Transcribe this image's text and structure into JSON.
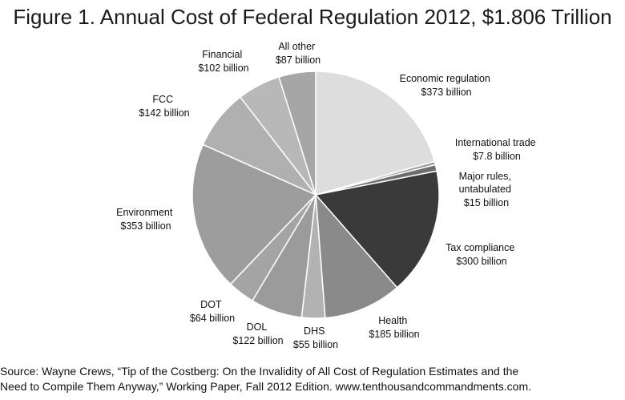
{
  "chart_data": {
    "type": "pie",
    "title": "Figure 1. Annual Cost of Federal Regulation 2012, $1.806 Trillion",
    "slices": [
      {
        "label": "Economic regulation",
        "value_text": "$373 billion",
        "value": 373,
        "color": "#dddddd"
      },
      {
        "label": "International trade",
        "value_text": "$7.8 billion",
        "value": 7.8,
        "color": "#9a9a9a"
      },
      {
        "label": "Major rules, untabulated",
        "value_text": "$15 billion",
        "value": 15,
        "color": "#6e6e6e"
      },
      {
        "label": "Tax compliance",
        "value_text": "$300 billion",
        "value": 300,
        "color": "#3a3a3a"
      },
      {
        "label": "Health",
        "value_text": "$185 billion",
        "value": 185,
        "color": "#8a8a8a"
      },
      {
        "label": "DHS",
        "value_text": "$55 billion",
        "value": 55,
        "color": "#b2b2b2"
      },
      {
        "label": "DOL",
        "value_text": "$122 billion",
        "value": 122,
        "color": "#9b9b9b"
      },
      {
        "label": "DOT",
        "value_text": "$64 billion",
        "value": 64,
        "color": "#a4a4a4"
      },
      {
        "label": "Environment",
        "value_text": "$353 billion",
        "value": 353,
        "color": "#9d9d9d"
      },
      {
        "label": "FCC",
        "value_text": "$142 billion",
        "value": 142,
        "color": "#b0b0b0"
      },
      {
        "label": "Financial",
        "value_text": "$102 billion",
        "value": 102,
        "color": "#b8b8b8"
      },
      {
        "label": "All other",
        "value_text": "$87 billion",
        "value": 87,
        "color": "#a6a6a6"
      }
    ]
  },
  "source": {
    "line1": "Source: Wayne Crews, “Tip of the Costberg: On the Invalidity of All Cost of Regulation Estimates and the",
    "line2": "Need to Compile Them Anyway,” Working Paper, Fall 2012 Edition. www.tenthousandcommandments.com."
  }
}
